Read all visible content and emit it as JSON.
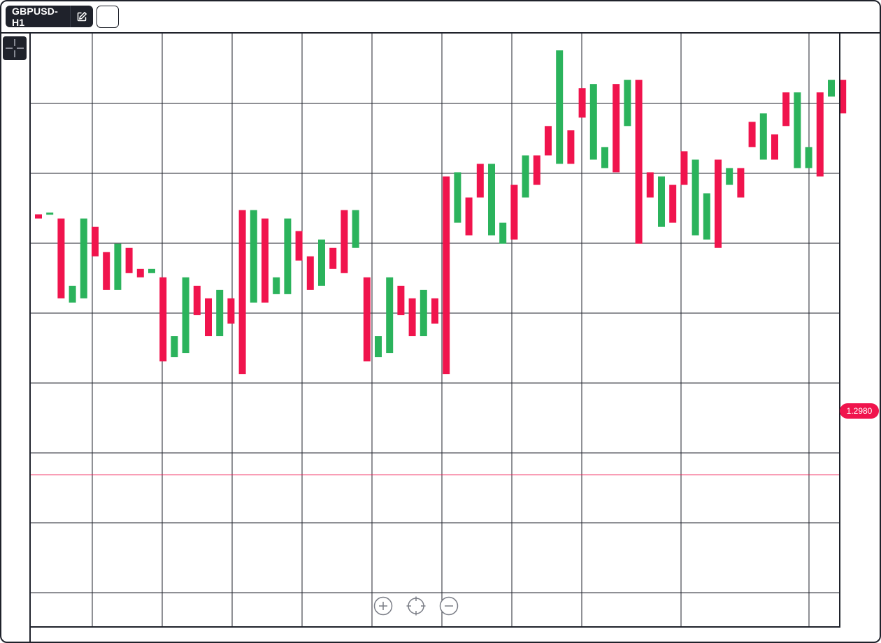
{
  "header": {
    "symbol_label": "GBPUSD-H1",
    "edit_icon": "edit-icon"
  },
  "toolbar": {
    "crosshair_icon": "crosshair-icon"
  },
  "zoom_controls": {
    "zoom_in_icon": "zoom-in-icon",
    "center_icon": "crosshair-target-icon",
    "zoom_out_icon": "zoom-out-icon"
  },
  "price_line": {
    "label": "1.2980",
    "value": 1.298,
    "color": "#f0144d"
  },
  "colors": {
    "up": "#2bb35c",
    "down": "#f0144d",
    "grid": "#1f222b",
    "frame": "#1f222b"
  },
  "chart_data": {
    "type": "candlestick",
    "y_range": [
      1.2944,
      1.3085
    ],
    "grid": true,
    "candles": [
      {
        "d": "down",
        "o": 1.3042,
        "c": 1.3041
      },
      {
        "d": "up",
        "o": 1.3042,
        "c": 1.30424
      },
      {
        "d": "down",
        "o": 1.3041,
        "c": 1.3022
      },
      {
        "d": "up",
        "o": 1.3021,
        "c": 1.3025
      },
      {
        "d": "up",
        "o": 1.3022,
        "c": 1.3041
      },
      {
        "d": "down",
        "o": 1.3039,
        "c": 1.3032
      },
      {
        "d": "down",
        "o": 1.3033,
        "c": 1.3024
      },
      {
        "d": "up",
        "o": 1.3024,
        "c": 1.3035
      },
      {
        "d": "down",
        "o": 1.3034,
        "c": 1.3028
      },
      {
        "d": "down",
        "o": 1.3029,
        "c": 1.3027
      },
      {
        "d": "up",
        "o": 1.3028,
        "c": 1.3029
      },
      {
        "d": "down",
        "o": 1.3027,
        "c": 1.3007
      },
      {
        "d": "up",
        "o": 1.3008,
        "c": 1.3013
      },
      {
        "d": "up",
        "o": 1.3009,
        "c": 1.3027
      },
      {
        "d": "down",
        "o": 1.3025,
        "c": 1.3018
      },
      {
        "d": "down",
        "o": 1.3022,
        "c": 1.3013
      },
      {
        "d": "up",
        "o": 1.3013,
        "c": 1.3024
      },
      {
        "d": "down",
        "o": 1.3022,
        "c": 1.3016
      },
      {
        "d": "down",
        "o": 1.3043,
        "c": 1.3004
      },
      {
        "d": "up",
        "o": 1.3021,
        "c": 1.3043
      },
      {
        "d": "down",
        "o": 1.3041,
        "c": 1.3021
      },
      {
        "d": "up",
        "o": 1.3023,
        "c": 1.3027
      },
      {
        "d": "up",
        "o": 1.3023,
        "c": 1.3041
      },
      {
        "d": "down",
        "o": 1.3038,
        "c": 1.3031
      },
      {
        "d": "down",
        "o": 1.3032,
        "c": 1.3024
      },
      {
        "d": "up",
        "o": 1.3025,
        "c": 1.3036
      },
      {
        "d": "down",
        "o": 1.3034,
        "c": 1.3029
      },
      {
        "d": "down",
        "o": 1.3043,
        "c": 1.3028
      },
      {
        "d": "up",
        "o": 1.3034,
        "c": 1.3043
      },
      {
        "d": "down",
        "o": 1.3027,
        "c": 1.3007
      },
      {
        "d": "up",
        "o": 1.3008,
        "c": 1.3013
      },
      {
        "d": "up",
        "o": 1.3009,
        "c": 1.3027
      },
      {
        "d": "down",
        "o": 1.3025,
        "c": 1.3018
      },
      {
        "d": "down",
        "o": 1.3022,
        "c": 1.3013
      },
      {
        "d": "up",
        "o": 1.3013,
        "c": 1.3024
      },
      {
        "d": "down",
        "o": 1.3022,
        "c": 1.3016
      },
      {
        "d": "down",
        "o": 1.3051,
        "c": 1.3004
      },
      {
        "d": "up",
        "o": 1.304,
        "c": 1.3052
      },
      {
        "d": "down",
        "o": 1.3046,
        "c": 1.3037
      },
      {
        "d": "down",
        "o": 1.3054,
        "c": 1.3046
      },
      {
        "d": "up",
        "o": 1.3037,
        "c": 1.3054
      },
      {
        "d": "up",
        "o": 1.3035,
        "c": 1.304
      },
      {
        "d": "down",
        "o": 1.3049,
        "c": 1.3036
      },
      {
        "d": "up",
        "o": 1.3046,
        "c": 1.3056
      },
      {
        "d": "down",
        "o": 1.3056,
        "c": 1.3049
      },
      {
        "d": "down",
        "o": 1.3063,
        "c": 1.3056
      },
      {
        "d": "up",
        "o": 1.3054,
        "c": 1.3081
      },
      {
        "d": "down",
        "o": 1.3062,
        "c": 1.3054
      },
      {
        "d": "down",
        "o": 1.3072,
        "c": 1.3065
      },
      {
        "d": "up",
        "o": 1.3055,
        "c": 1.3073
      },
      {
        "d": "up",
        "o": 1.3053,
        "c": 1.3058
      },
      {
        "d": "down",
        "o": 1.3073,
        "c": 1.3052
      },
      {
        "d": "up",
        "o": 1.3063,
        "c": 1.3074
      },
      {
        "d": "down",
        "o": 1.3074,
        "c": 1.3035
      },
      {
        "d": "down",
        "o": 1.3052,
        "c": 1.3046
      },
      {
        "d": "up",
        "o": 1.3039,
        "c": 1.3051
      },
      {
        "d": "down",
        "o": 1.3049,
        "c": 1.304
      },
      {
        "d": "down",
        "o": 1.3057,
        "c": 1.3049
      },
      {
        "d": "up",
        "o": 1.3037,
        "c": 1.3055
      },
      {
        "d": "up",
        "o": 1.3036,
        "c": 1.3047
      },
      {
        "d": "down",
        "o": 1.3055,
        "c": 1.3034
      },
      {
        "d": "up",
        "o": 1.3049,
        "c": 1.3053
      },
      {
        "d": "down",
        "o": 1.3053,
        "c": 1.3046
      },
      {
        "d": "down",
        "o": 1.3064,
        "c": 1.3058
      },
      {
        "d": "up",
        "o": 1.3055,
        "c": 1.3066
      },
      {
        "d": "down",
        "o": 1.3061,
        "c": 1.3055
      },
      {
        "d": "down",
        "o": 1.3071,
        "c": 1.3063
      },
      {
        "d": "up",
        "o": 1.3053,
        "c": 1.3071
      },
      {
        "d": "up",
        "o": 1.3053,
        "c": 1.3058
      },
      {
        "d": "down",
        "o": 1.3071,
        "c": 1.3051
      },
      {
        "d": "up",
        "o": 1.307,
        "c": 1.3074
      },
      {
        "d": "down",
        "o": 1.3074,
        "c": 1.3066
      }
    ]
  }
}
